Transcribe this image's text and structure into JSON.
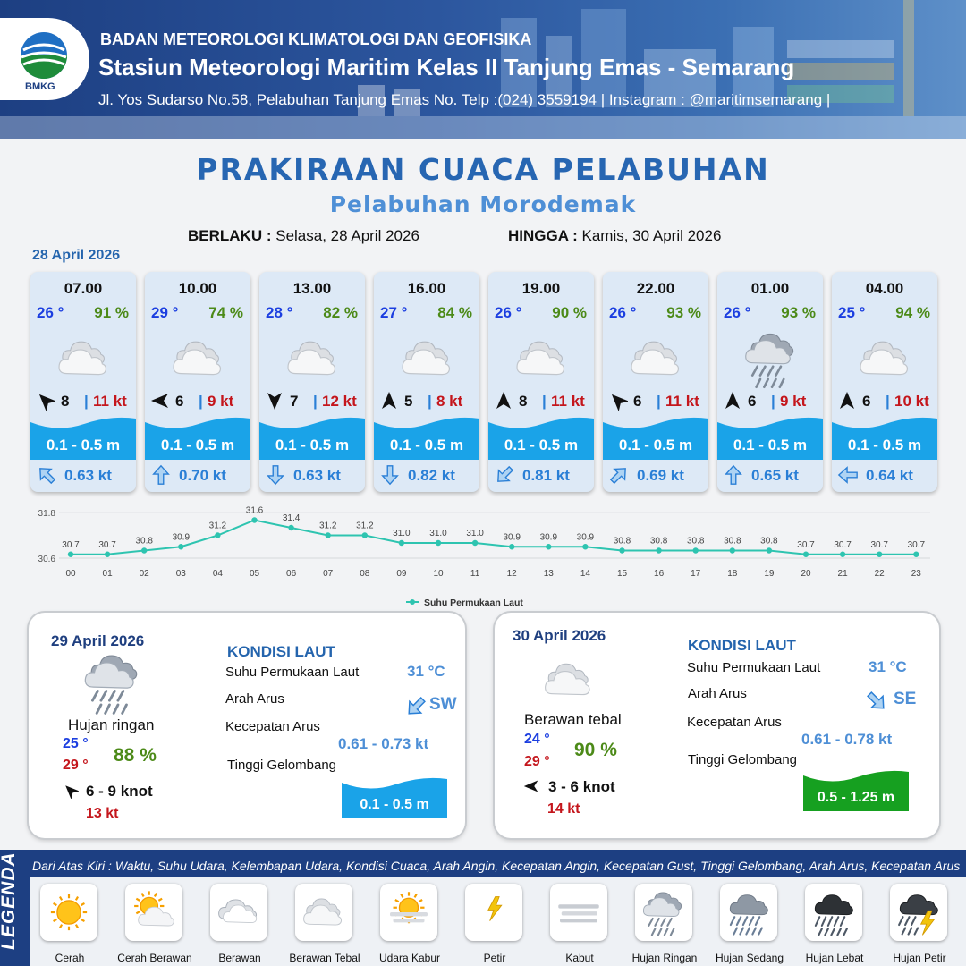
{
  "header": {
    "logo_text": "BMKG",
    "org": "BADAN METEOROLOGI KLIMATOLOGI DAN GEOFISIKA",
    "station": "Stasiun Meteorologi Maritim Kelas II Tanjung Emas - Semarang",
    "address": "Jl. Yos Sudarso No.58, Pelabuhan Tanjung Emas No. Telp :(024) 3559194 | Instagram : @maritimsemarang |"
  },
  "title": "PRAKIRAAN CUACA PELABUHAN",
  "subtitle": "Pelabuhan Morodemak",
  "validity": {
    "from_label": "BERLAKU :",
    "from_value": "Selasa, 28 April 2026",
    "to_label": "HINGGA :",
    "to_value": "Kamis, 30 April 2026"
  },
  "day1": {
    "date": "28 April 2026",
    "hours": [
      {
        "time": "07.00",
        "temp": "26 °",
        "hum": "91 %",
        "icon": "berawan-tebal",
        "wind_dir_deg": 315,
        "wind": "8",
        "gust": "11 kt",
        "wave": "0.1 - 0.5 m",
        "cur_dir_deg": 315,
        "cur": "0.63 kt"
      },
      {
        "time": "10.00",
        "temp": "29 °",
        "hum": "74 %",
        "icon": "berawan-tebal",
        "wind_dir_deg": 270,
        "wind": "6",
        "gust": "9 kt",
        "wave": "0.1 - 0.5 m",
        "cur_dir_deg": 0,
        "cur": "0.70 kt"
      },
      {
        "time": "13.00",
        "temp": "28 °",
        "hum": "82 %",
        "icon": "berawan-tebal",
        "wind_dir_deg": 180,
        "wind": "7",
        "gust": "12 kt",
        "wave": "0.1 - 0.5 m",
        "cur_dir_deg": 180,
        "cur": "0.63 kt"
      },
      {
        "time": "16.00",
        "temp": "27 °",
        "hum": "84 %",
        "icon": "berawan-tebal",
        "wind_dir_deg": 0,
        "wind": "5",
        "gust": "8 kt",
        "wave": "0.1 - 0.5 m",
        "cur_dir_deg": 180,
        "cur": "0.82 kt"
      },
      {
        "time": "19.00",
        "temp": "26 °",
        "hum": "90 %",
        "icon": "berawan-tebal",
        "wind_dir_deg": 0,
        "wind": "8",
        "gust": "11 kt",
        "wave": "0.1 - 0.5 m",
        "cur_dir_deg": 225,
        "cur": "0.81 kt"
      },
      {
        "time": "22.00",
        "temp": "26 °",
        "hum": "93 %",
        "icon": "berawan-tebal",
        "wind_dir_deg": 315,
        "wind": "6",
        "gust": "11 kt",
        "wave": "0.1 - 0.5 m",
        "cur_dir_deg": 45,
        "cur": "0.69 kt"
      },
      {
        "time": "01.00",
        "temp": "26 °",
        "hum": "93 %",
        "icon": "hujan-ringan",
        "wind_dir_deg": 0,
        "wind": "6",
        "gust": "9 kt",
        "wave": "0.1 - 0.5 m",
        "cur_dir_deg": 0,
        "cur": "0.65 kt"
      },
      {
        "time": "04.00",
        "temp": "25 °",
        "hum": "94 %",
        "icon": "berawan-tebal",
        "wind_dir_deg": 0,
        "wind": "6",
        "gust": "10 kt",
        "wave": "0.1 - 0.5 m",
        "cur_dir_deg": 270,
        "cur": "0.64 kt"
      }
    ]
  },
  "chart_data": {
    "type": "line",
    "legend": "Suhu Permukaan Laut",
    "legend_position": "bottom-center",
    "x": [
      "00",
      "01",
      "02",
      "03",
      "04",
      "05",
      "06",
      "07",
      "08",
      "09",
      "10",
      "11",
      "12",
      "13",
      "14",
      "15",
      "16",
      "17",
      "18",
      "19",
      "20",
      "21",
      "22",
      "23"
    ],
    "series": [
      {
        "name": "Suhu Permukaan Laut",
        "values": [
          30.7,
          30.7,
          30.8,
          30.9,
          31.2,
          31.6,
          31.4,
          31.2,
          31.2,
          31.0,
          31.0,
          31.0,
          30.9,
          30.9,
          30.9,
          30.8,
          30.8,
          30.8,
          30.8,
          30.8,
          30.7,
          30.7,
          30.7,
          30.7
        ]
      }
    ],
    "y_ticks": [
      "31.8",
      "30.6"
    ],
    "ylim": [
      30.6,
      31.8
    ],
    "color": "#2ec4b0",
    "grid": true
  },
  "day2": {
    "date": "29 April 2026",
    "icon": "hujan-ringan",
    "condition": "Hujan ringan",
    "tmin": "25 °",
    "tmax": "29 °",
    "hum": "88 %",
    "wind_dir_deg": 315,
    "wind": "6  - 9 knot",
    "gust": "13 kt",
    "kondisi_title": "KONDISI LAUT",
    "sst_label": "Suhu Permukaan Laut",
    "sst": "31 °C",
    "arus_dir_label": "Arah Arus",
    "arus_dir": "SW",
    "arus_dir_deg": 225,
    "arus_speed_label": "Kecepatan Arus",
    "arus_speed": "0.61 - 0.73 kt",
    "wave_label": "Tinggi Gelombang",
    "wave": "0.1 - 0.5 m",
    "wave_color": "#1aa3e8"
  },
  "day3": {
    "date": "30 April 2026",
    "icon": "berawan-tebal",
    "condition": "Berawan tebal",
    "tmin": "24 °",
    "tmax": "29 °",
    "hum": "90 %",
    "wind_dir_deg": 270,
    "wind": "3  - 6 knot",
    "gust": "14 kt",
    "kondisi_title": "KONDISI LAUT",
    "sst_label": "Suhu Permukaan Laut",
    "sst": "31 °C",
    "arus_dir_label": "Arah Arus",
    "arus_dir": "SE",
    "arus_dir_deg": 135,
    "arus_speed_label": "Kecepatan Arus",
    "arus_speed": "0.61 - 0.78 kt",
    "wave_label": "Tinggi Gelombang",
    "wave": "0.5 - 1.25 m",
    "wave_color": "#16a020"
  },
  "legend": {
    "side_title": "LEGENDA",
    "description": "Dari Atas Kiri : Waktu, Suhu Udara, Kelembapan Udara, Kondisi Cuaca, Arah Angin, Kecepatan Angin, Kecepatan Gust, Tinggi Gelombang, Arah Arus, Kecepatan Arus",
    "items": [
      {
        "label": "Cerah",
        "icon": "cerah"
      },
      {
        "label": "Cerah Berawan",
        "icon": "cerah-berawan"
      },
      {
        "label": "Berawan",
        "icon": "berawan"
      },
      {
        "label": "Berawan Tebal",
        "icon": "berawan-tebal"
      },
      {
        "label": "Udara Kabur",
        "icon": "udara-kabur"
      },
      {
        "label": "Petir",
        "icon": "petir"
      },
      {
        "label": "Kabut",
        "icon": "kabut"
      },
      {
        "label": "Hujan Ringan",
        "icon": "hujan-ringan"
      },
      {
        "label": "Hujan Sedang",
        "icon": "hujan-sedang"
      },
      {
        "label": "Hujan Lebat",
        "icon": "hujan-lebat"
      },
      {
        "label": "Hujan Petir",
        "icon": "hujan-petir"
      }
    ]
  }
}
